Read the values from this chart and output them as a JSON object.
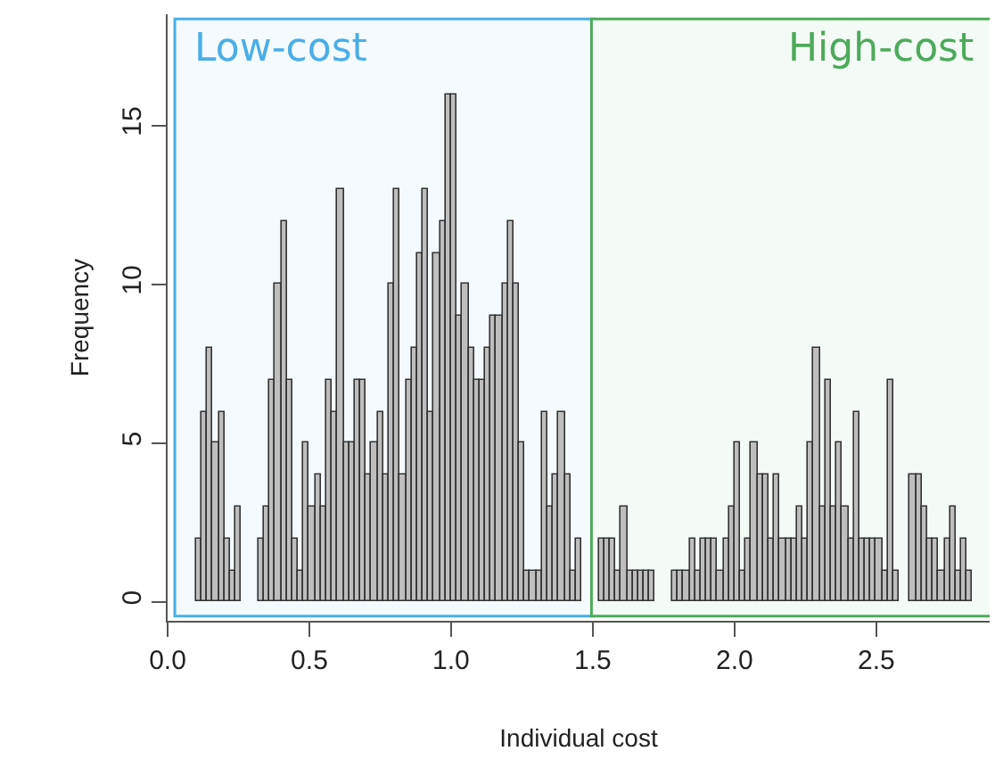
{
  "chart_data": {
    "type": "histogram",
    "xlabel": "Individual cost",
    "ylabel": "Frequency",
    "bins": [
      0.1,
      0.12,
      0.14,
      0.16,
      0.18,
      0.2,
      0.22,
      0.24,
      0.26,
      0.28,
      0.3,
      0.32,
      0.34,
      0.36,
      0.38,
      0.4,
      0.42,
      0.44,
      0.46,
      0.48,
      0.5,
      0.52,
      0.54,
      0.56,
      0.58,
      0.6,
      0.62,
      0.64,
      0.66,
      0.68,
      0.7,
      0.72,
      0.74,
      0.76,
      0.78,
      0.8,
      0.82,
      0.84,
      0.86,
      0.88,
      0.9,
      0.92,
      0.94,
      0.96,
      0.98,
      1.0,
      1.02,
      1.04,
      1.06,
      1.08,
      1.1,
      1.12,
      1.14,
      1.16,
      1.18,
      1.2,
      1.22,
      1.24,
      1.26,
      1.28,
      1.3,
      1.32,
      1.34,
      1.36,
      1.38,
      1.4,
      1.42,
      1.44,
      1.46,
      1.48,
      1.5,
      1.52,
      1.54,
      1.56,
      1.58,
      1.6,
      1.62,
      1.64,
      1.66,
      1.68,
      1.7,
      1.72,
      1.74,
      1.76,
      1.78,
      1.8,
      1.82,
      1.84,
      1.86,
      1.88,
      1.9,
      1.92,
      1.94,
      1.96,
      1.98,
      2.0,
      2.02,
      2.04,
      2.06,
      2.08,
      2.1,
      2.12,
      2.14,
      2.16,
      2.18,
      2.2,
      2.22,
      2.24,
      2.26,
      2.28,
      2.3,
      2.32,
      2.34,
      2.36,
      2.38,
      2.4,
      2.42,
      2.44,
      2.46,
      2.48,
      2.5,
      2.52,
      2.54,
      2.56,
      2.58,
      2.6,
      2.62,
      2.64,
      2.66,
      2.68,
      2.7,
      2.72,
      2.74,
      2.76,
      2.78,
      2.8,
      2.82,
      2.84
    ],
    "values": [
      2,
      6,
      8,
      5,
      6,
      2,
      1,
      3,
      0,
      0,
      0,
      2,
      3,
      7,
      10,
      12,
      7,
      2,
      1,
      5,
      3,
      4,
      3,
      7,
      6,
      13,
      5,
      5,
      7,
      7,
      4,
      5,
      6,
      4,
      10,
      13,
      4,
      7,
      8,
      11,
      13,
      6,
      11,
      12,
      16,
      16,
      9,
      10,
      8,
      7,
      7,
      8,
      9,
      9,
      10,
      12,
      10,
      5,
      1,
      1,
      1,
      6,
      3,
      4,
      6,
      4,
      1,
      2,
      0,
      0,
      0,
      2,
      2,
      2,
      1,
      3,
      1,
      1,
      1,
      1,
      1,
      0,
      0,
      0,
      1,
      1,
      1,
      2,
      1,
      2,
      2,
      2,
      1,
      2,
      3,
      5,
      1,
      2,
      5,
      4,
      4,
      2,
      4,
      2,
      2,
      2,
      3,
      2,
      5,
      8,
      3,
      7,
      3,
      5,
      3,
      2,
      6,
      2,
      2,
      2,
      2,
      1,
      7,
      1,
      0,
      0,
      4,
      4,
      3,
      2,
      2,
      1,
      2,
      3,
      1,
      2,
      1
    ],
    "color": "#bebebe",
    "xlim": [
      0,
      2.9
    ],
    "xticks": [
      {
        "value": 0,
        "label": "0.0"
      },
      0.5,
      {
        "value": 1,
        "label": "1.0"
      },
      1.5,
      {
        "value": 2,
        "label": "2.0"
      },
      2.5
    ],
    "ylim": [
      -0.6,
      18.5
    ],
    "yticks": [
      0,
      5,
      10,
      15
    ],
    "bands": [
      {
        "axis": "x",
        "from": 0.03,
        "to": 1.5,
        "label": "Low-cost",
        "color": "#4aaee8"
      },
      {
        "axis": "x",
        "from": 1.5,
        "to": 2.9,
        "label": "High-cost",
        "color": "#4caa5a"
      }
    ],
    "grid": false
  }
}
